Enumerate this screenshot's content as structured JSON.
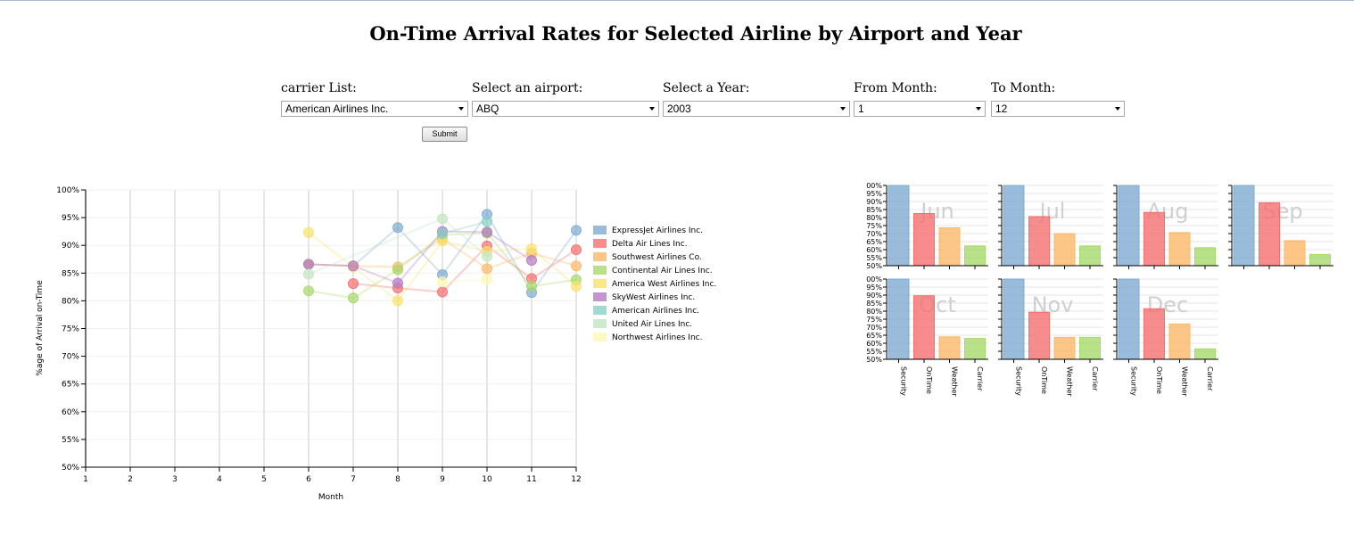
{
  "page": {
    "title": "On-Time Arrival Rates for Selected Airline by Airport and Year"
  },
  "controls": {
    "carrier": {
      "label": "carrier List:",
      "value": "American Airlines Inc."
    },
    "airport": {
      "label": "Select an airport:",
      "value": "ABQ"
    },
    "year": {
      "label": "Select a Year:",
      "value": "2003"
    },
    "from_month": {
      "label": "From Month:",
      "value": "1"
    },
    "to_month": {
      "label": "To Month:",
      "value": "12"
    },
    "submit_label": "Submit"
  },
  "chart_data": [
    {
      "type": "line",
      "xlabel": "Month",
      "ylabel": "%age of Arrival on-Time",
      "xlim": [
        1,
        12
      ],
      "ylim": [
        50,
        100
      ],
      "x_ticks": [
        "1",
        "2",
        "3",
        "4",
        "5",
        "6",
        "7",
        "8",
        "9",
        "10",
        "11",
        "12"
      ],
      "y_ticks": [
        "50%",
        "55%",
        "60%",
        "65%",
        "70%",
        "75%",
        "80%",
        "85%",
        "90%",
        "95%",
        "100%"
      ],
      "grid": true,
      "legend_position": "right",
      "series": [
        {
          "name": "ExpressJet Airlines Inc.",
          "color": "#7fabd1",
          "x": [
            6,
            7,
            8,
            9,
            10,
            11,
            12
          ],
          "values": [
            86.6,
            86.3,
            93.2,
            84.7,
            95.6,
            81.5,
            92.7
          ]
        },
        {
          "name": "Delta Air Lines Inc.",
          "color": "#f56f6f",
          "x": [
            7,
            8,
            9,
            10,
            11,
            12
          ],
          "values": [
            83.1,
            82.3,
            81.6,
            89.9,
            84.0,
            89.2
          ]
        },
        {
          "name": "Southwest Airlines Co.",
          "color": "#fbb868",
          "x": [
            6,
            7,
            8,
            9,
            10,
            11,
            12
          ],
          "values": [
            86.6,
            86.3,
            86.1,
            91.2,
            85.8,
            88.6,
            86.3
          ]
        },
        {
          "name": "Continental Air Lines Inc.",
          "color": "#a8d96b",
          "x": [
            6,
            7,
            8,
            9,
            10,
            11,
            12
          ],
          "values": [
            81.8,
            80.5,
            85.6,
            91.9,
            92.2,
            82.6,
            83.8
          ]
        },
        {
          "name": "America West Airlines Inc.",
          "color": "#f9e26a",
          "x": [
            6,
            7,
            8,
            9,
            10,
            11,
            12
          ],
          "values": [
            92.3,
            86.1,
            80.0,
            90.8,
            88.9,
            89.4,
            82.6
          ]
        },
        {
          "name": "SkyWest Airlines Inc.",
          "color": "#b57cc4",
          "x": [
            6,
            7,
            8,
            9,
            10,
            11
          ],
          "values": [
            86.6,
            86.3,
            83.2,
            92.5,
            92.4,
            87.3
          ]
        },
        {
          "name": "American Airlines Inc.",
          "color": "#88d1c6",
          "x": [
            9,
            10
          ],
          "values": [
            92.1,
            94.3
          ]
        },
        {
          "name": "United Air Lines Inc.",
          "color": "#c3e6c0",
          "x": [
            6,
            9,
            10
          ],
          "values": [
            84.8,
            94.8,
            88.0
          ]
        },
        {
          "name": "Northwest Airlines Inc.",
          "color": "#fcf7b1",
          "x": [
            9,
            10
          ],
          "values": [
            83.4,
            83.9
          ]
        }
      ]
    },
    {
      "type": "bar",
      "layout": "small-multiples",
      "categories": [
        "Security",
        "OnTime",
        "Weather",
        "Carrier"
      ],
      "colors": [
        "#7fabd1",
        "#f56f6f",
        "#fbb868",
        "#a8d96b"
      ],
      "y_ticks": [
        "50%",
        "55%",
        "60%",
        "65%",
        "70%",
        "75%",
        "80%",
        "85%",
        "90%",
        "95%",
        "00%"
      ],
      "ylim": [
        50,
        100
      ],
      "panels": [
        {
          "month": "Jun",
          "values": [
            100,
            82.5,
            73.6,
            62.3
          ]
        },
        {
          "month": "Jul",
          "values": [
            100,
            80.6,
            70.0,
            62.3
          ]
        },
        {
          "month": "Aug",
          "values": [
            100,
            83.2,
            70.6,
            61.2
          ]
        },
        {
          "month": "Sep",
          "values": [
            100,
            89.2,
            65.6,
            57.0
          ]
        },
        {
          "month": "Oct",
          "values": [
            100,
            89.6,
            64.0,
            63.0
          ]
        },
        {
          "month": "Nov",
          "values": [
            100,
            79.3,
            63.7,
            63.7
          ]
        },
        {
          "month": "Dec",
          "values": [
            100,
            81.5,
            72.0,
            56.5
          ]
        }
      ]
    }
  ]
}
